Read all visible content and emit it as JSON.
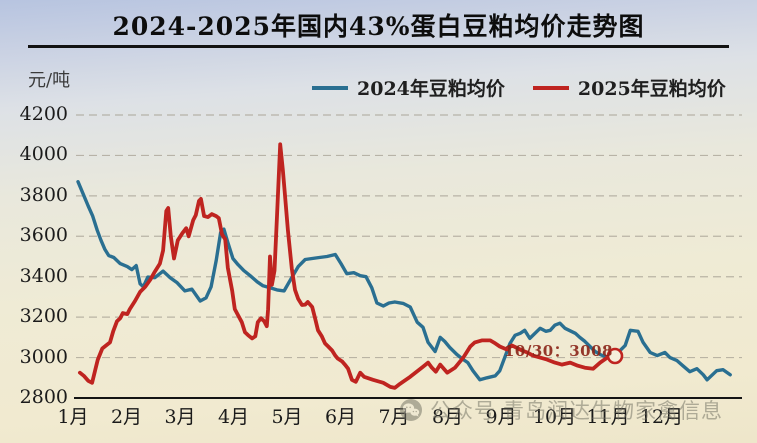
{
  "page": {
    "title": "2024-2025年国内43%蛋白豆粕均价走势图",
    "y_unit": "元/吨",
    "watermark": {
      "icon": "wechat-icon",
      "prefix": "公众号",
      "name": "青岛润达生物家禽信息"
    }
  },
  "legend": [
    {
      "label": "2024年豆粕均价",
      "color": "#2a6f91"
    },
    {
      "label": "2025年豆粕均价",
      "color": "#bf2420"
    }
  ],
  "annotation": {
    "text": "10/30：3008",
    "color": "#8a2418"
  },
  "chart_data": {
    "type": "line",
    "title": "2024-2025年国内43%蛋白豆粕均价走势图",
    "xlabel": "",
    "ylabel": "元/吨",
    "ylim": [
      2800,
      4200
    ],
    "y_ticks": [
      4200,
      4000,
      3800,
      3600,
      3400,
      3200,
      3000,
      2800
    ],
    "x_ticks": [
      "1月",
      "2月",
      "3月",
      "4月",
      "5月",
      "6月",
      "7月",
      "8月",
      "9月",
      "10月",
      "11月",
      "12月"
    ],
    "x_unit": "fraction_of_year_0_to_1",
    "grid": "dashed-horizontal",
    "legend_position": "top",
    "series": [
      {
        "name": "2024年豆粕均价",
        "color": "#2a6f91",
        "points": [
          [
            0.0,
            3870
          ],
          [
            0.008,
            3810
          ],
          [
            0.016,
            3750
          ],
          [
            0.023,
            3700
          ],
          [
            0.03,
            3630
          ],
          [
            0.036,
            3580
          ],
          [
            0.042,
            3535
          ],
          [
            0.048,
            3505
          ],
          [
            0.056,
            3495
          ],
          [
            0.066,
            3465
          ],
          [
            0.077,
            3450
          ],
          [
            0.084,
            3435
          ],
          [
            0.091,
            3455
          ],
          [
            0.097,
            3365
          ],
          [
            0.102,
            3350
          ],
          [
            0.109,
            3398
          ],
          [
            0.12,
            3395
          ],
          [
            0.133,
            3428
          ],
          [
            0.144,
            3395
          ],
          [
            0.155,
            3370
          ],
          [
            0.167,
            3330
          ],
          [
            0.178,
            3338
          ],
          [
            0.191,
            3280
          ],
          [
            0.2,
            3295
          ],
          [
            0.208,
            3350
          ],
          [
            0.216,
            3480
          ],
          [
            0.223,
            3620
          ],
          [
            0.228,
            3635
          ],
          [
            0.234,
            3570
          ],
          [
            0.242,
            3490
          ],
          [
            0.25,
            3460
          ],
          [
            0.259,
            3430
          ],
          [
            0.269,
            3405
          ],
          [
            0.28,
            3375
          ],
          [
            0.289,
            3355
          ],
          [
            0.3,
            3345
          ],
          [
            0.311,
            3335
          ],
          [
            0.322,
            3330
          ],
          [
            0.333,
            3390
          ],
          [
            0.344,
            3450
          ],
          [
            0.355,
            3485
          ],
          [
            0.366,
            3490
          ],
          [
            0.377,
            3495
          ],
          [
            0.389,
            3500
          ],
          [
            0.402,
            3510
          ],
          [
            0.411,
            3465
          ],
          [
            0.42,
            3415
          ],
          [
            0.431,
            3420
          ],
          [
            0.441,
            3405
          ],
          [
            0.45,
            3400
          ],
          [
            0.459,
            3345
          ],
          [
            0.467,
            3270
          ],
          [
            0.477,
            3255
          ],
          [
            0.486,
            3270
          ],
          [
            0.495,
            3275
          ],
          [
            0.508,
            3268
          ],
          [
            0.519,
            3250
          ],
          [
            0.53,
            3175
          ],
          [
            0.539,
            3150
          ],
          [
            0.547,
            3075
          ],
          [
            0.558,
            3030
          ],
          [
            0.566,
            3100
          ],
          [
            0.573,
            3080
          ],
          [
            0.581,
            3050
          ],
          [
            0.592,
            3015
          ],
          [
            0.6,
            2995
          ],
          [
            0.609,
            2975
          ],
          [
            0.617,
            2935
          ],
          [
            0.628,
            2890
          ],
          [
            0.639,
            2900
          ],
          [
            0.652,
            2910
          ],
          [
            0.659,
            2935
          ],
          [
            0.675,
            3070
          ],
          [
            0.683,
            3110
          ],
          [
            0.691,
            3120
          ],
          [
            0.698,
            3135
          ],
          [
            0.706,
            3095
          ],
          [
            0.722,
            3145
          ],
          [
            0.731,
            3130
          ],
          [
            0.738,
            3135
          ],
          [
            0.745,
            3160
          ],
          [
            0.753,
            3170
          ],
          [
            0.761,
            3145
          ],
          [
            0.777,
            3120
          ],
          [
            0.784,
            3100
          ],
          [
            0.792,
            3080
          ],
          [
            0.8,
            3055
          ],
          [
            0.808,
            3030
          ],
          [
            0.816,
            3015
          ],
          [
            0.827,
            3000
          ],
          [
            0.836,
            3000
          ],
          [
            0.855,
            3060
          ],
          [
            0.863,
            3135
          ],
          [
            0.875,
            3130
          ],
          [
            0.883,
            3075
          ],
          [
            0.894,
            3025
          ],
          [
            0.905,
            3010
          ],
          [
            0.917,
            3025
          ],
          [
            0.925,
            3000
          ],
          [
            0.936,
            2985
          ],
          [
            0.945,
            2960
          ],
          [
            0.956,
            2930
          ],
          [
            0.967,
            2945
          ],
          [
            0.977,
            2915
          ],
          [
            0.983,
            2890
          ],
          [
            0.998,
            2935
          ],
          [
            1.008,
            2940
          ],
          [
            1.019,
            2915
          ]
        ]
      },
      {
        "name": "2025年豆粕均价",
        "color": "#bf2420",
        "points": [
          [
            0.003,
            2925
          ],
          [
            0.009,
            2910
          ],
          [
            0.016,
            2885
          ],
          [
            0.022,
            2875
          ],
          [
            0.027,
            2940
          ],
          [
            0.031,
            2990
          ],
          [
            0.038,
            3045
          ],
          [
            0.044,
            3060
          ],
          [
            0.05,
            3075
          ],
          [
            0.055,
            3130
          ],
          [
            0.061,
            3180
          ],
          [
            0.066,
            3195
          ],
          [
            0.07,
            3220
          ],
          [
            0.077,
            3215
          ],
          [
            0.081,
            3240
          ],
          [
            0.089,
            3280
          ],
          [
            0.097,
            3325
          ],
          [
            0.105,
            3350
          ],
          [
            0.113,
            3385
          ],
          [
            0.12,
            3425
          ],
          [
            0.128,
            3465
          ],
          [
            0.133,
            3530
          ],
          [
            0.138,
            3725
          ],
          [
            0.141,
            3740
          ],
          [
            0.145,
            3600
          ],
          [
            0.15,
            3490
          ],
          [
            0.156,
            3580
          ],
          [
            0.163,
            3615
          ],
          [
            0.169,
            3640
          ],
          [
            0.173,
            3600
          ],
          [
            0.18,
            3680
          ],
          [
            0.184,
            3705
          ],
          [
            0.189,
            3775
          ],
          [
            0.192,
            3785
          ],
          [
            0.197,
            3700
          ],
          [
            0.203,
            3695
          ],
          [
            0.209,
            3710
          ],
          [
            0.216,
            3700
          ],
          [
            0.22,
            3690
          ],
          [
            0.225,
            3610
          ],
          [
            0.23,
            3585
          ],
          [
            0.234,
            3445
          ],
          [
            0.241,
            3330
          ],
          [
            0.245,
            3240
          ],
          [
            0.25,
            3210
          ],
          [
            0.256,
            3175
          ],
          [
            0.261,
            3125
          ],
          [
            0.266,
            3110
          ],
          [
            0.272,
            3095
          ],
          [
            0.277,
            3105
          ],
          [
            0.281,
            3175
          ],
          [
            0.286,
            3195
          ],
          [
            0.291,
            3180
          ],
          [
            0.295,
            3155
          ],
          [
            0.297,
            3240
          ],
          [
            0.3,
            3500
          ],
          [
            0.303,
            3360
          ],
          [
            0.307,
            3430
          ],
          [
            0.311,
            3700
          ],
          [
            0.316,
            4055
          ],
          [
            0.32,
            3930
          ],
          [
            0.323,
            3820
          ],
          [
            0.328,
            3630
          ],
          [
            0.334,
            3440
          ],
          [
            0.339,
            3335
          ],
          [
            0.344,
            3290
          ],
          [
            0.35,
            3260
          ],
          [
            0.355,
            3262
          ],
          [
            0.359,
            3275
          ],
          [
            0.366,
            3250
          ],
          [
            0.37,
            3200
          ],
          [
            0.375,
            3135
          ],
          [
            0.381,
            3105
          ],
          [
            0.386,
            3070
          ],
          [
            0.391,
            3055
          ],
          [
            0.397,
            3035
          ],
          [
            0.402,
            3010
          ],
          [
            0.406,
            2995
          ],
          [
            0.413,
            2980
          ],
          [
            0.417,
            2965
          ],
          [
            0.422,
            2945
          ],
          [
            0.428,
            2890
          ],
          [
            0.434,
            2880
          ],
          [
            0.441,
            2925
          ],
          [
            0.447,
            2905
          ],
          [
            0.461,
            2890
          ],
          [
            0.477,
            2875
          ],
          [
            0.488,
            2855
          ],
          [
            0.495,
            2850
          ],
          [
            0.503,
            2870
          ],
          [
            0.519,
            2905
          ],
          [
            0.539,
            2955
          ],
          [
            0.547,
            2975
          ],
          [
            0.553,
            2950
          ],
          [
            0.559,
            2930
          ],
          [
            0.566,
            2965
          ],
          [
            0.577,
            2925
          ],
          [
            0.589,
            2950
          ],
          [
            0.602,
            3000
          ],
          [
            0.613,
            3055
          ],
          [
            0.62,
            3075
          ],
          [
            0.631,
            3085
          ],
          [
            0.644,
            3085
          ],
          [
            0.652,
            3070
          ],
          [
            0.659,
            3055
          ],
          [
            0.67,
            3040
          ],
          [
            0.678,
            3060
          ],
          [
            0.694,
            3035
          ],
          [
            0.702,
            3025
          ],
          [
            0.711,
            3010
          ],
          [
            0.722,
            3000
          ],
          [
            0.733,
            2990
          ],
          [
            0.745,
            2975
          ],
          [
            0.756,
            2965
          ],
          [
            0.769,
            2975
          ],
          [
            0.781,
            2960
          ],
          [
            0.792,
            2950
          ],
          [
            0.805,
            2945
          ],
          [
            0.816,
            2975
          ],
          [
            0.827,
            3000
          ],
          [
            0.839,
            3008
          ]
        ],
        "end_marker": {
          "x": 0.839,
          "value": 3008,
          "label": "10/30：3008"
        }
      }
    ]
  }
}
